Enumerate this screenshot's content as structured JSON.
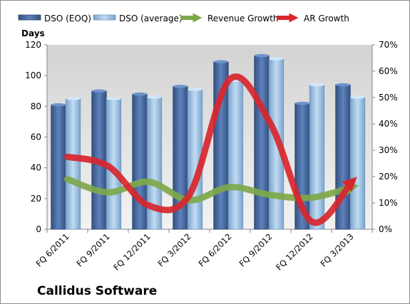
{
  "company_label": "Callidus Software",
  "chart_data": {
    "type": "bar",
    "title": "",
    "y_axis_left_label": "Days",
    "y_axis_left_range": [
      0,
      120
    ],
    "y_axis_left_ticks": [
      "0",
      "20",
      "40",
      "60",
      "80",
      "100",
      "120"
    ],
    "y_axis_right_range": [
      0,
      0.7
    ],
    "y_axis_right_ticks": [
      "0%",
      "10%",
      "20%",
      "30%",
      "40%",
      "50%",
      "60%",
      "70%"
    ],
    "grid": false,
    "legend_position": "top",
    "categories": [
      "FQ 6/2011",
      "FQ 9/2011",
      "FQ 12/2011",
      "FQ 3/2012",
      "FQ 6/2012",
      "FQ 9/2012",
      "FQ 12/2012",
      "FQ 3/2013"
    ],
    "series": [
      {
        "name": "DSO (EOQ)",
        "kind": "bar",
        "axis": "left",
        "color": "#4a6fa5",
        "values": [
          81,
          90,
          88,
          93,
          109,
          113,
          82,
          94
        ]
      },
      {
        "name": "DSO (average)",
        "kind": "bar",
        "axis": "left",
        "color": "#9cc3e6",
        "values": [
          85,
          85,
          86,
          91,
          97,
          111,
          94,
          86
        ]
      },
      {
        "name": "Revenue Growth",
        "kind": "line-arrow",
        "axis": "right",
        "color": "#7ea84a",
        "values": [
          0.19,
          0.14,
          0.18,
          0.11,
          0.16,
          0.13,
          0.12,
          0.16
        ]
      },
      {
        "name": "AR Growth",
        "kind": "line-arrow",
        "axis": "right",
        "color": "#d8262c",
        "values": [
          0.275,
          0.24,
          0.09,
          0.13,
          0.57,
          0.4,
          0.03,
          0.18
        ]
      }
    ]
  }
}
